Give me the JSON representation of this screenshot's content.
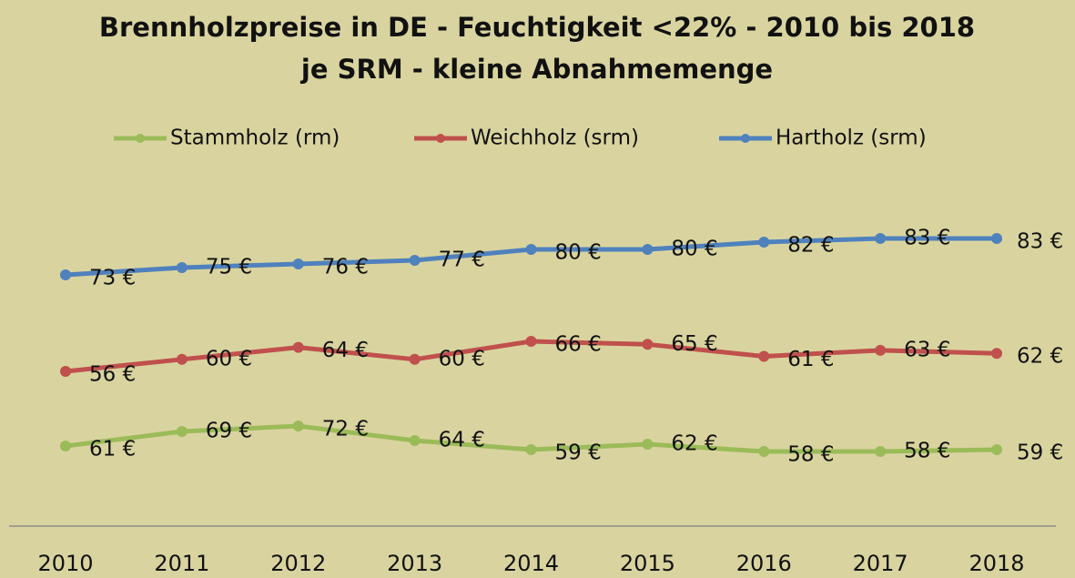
{
  "chart_data": {
    "type": "line",
    "title": "Brennholzpreise in DE - Feuchtigkeit <22% - 2010 bis 2018",
    "subtitle": "je SRM - kleine Abnahmemenge",
    "categories": [
      "2010",
      "2011",
      "2012",
      "2013",
      "2014",
      "2015",
      "2016",
      "2017",
      "2018"
    ],
    "series": [
      {
        "name": "Stammholz (rm)",
        "color": "#9bbb59",
        "values": [
          61,
          69,
          72,
          64,
          59,
          62,
          58,
          58,
          59
        ],
        "value_labels": [
          "61 €",
          "69 €",
          "72 €",
          "64 €",
          "59 €",
          "62 €",
          "58 €",
          "58 €",
          "59 €"
        ]
      },
      {
        "name": "Weichholz (srm)",
        "color": "#c0504d",
        "values": [
          56,
          60,
          64,
          60,
          66,
          65,
          61,
          63,
          62
        ],
        "value_labels": [
          "56 €",
          "60 €",
          "64 €",
          "60 €",
          "66 €",
          "65 €",
          "61 €",
          "63 €",
          "62 €"
        ]
      },
      {
        "name": "Hartholz (srm)",
        "color": "#4f81bd",
        "values": [
          73,
          75,
          76,
          77,
          80,
          80,
          82,
          83,
          83
        ],
        "value_labels": [
          "73 €",
          "75 €",
          "76 €",
          "77 €",
          "80 €",
          "80 €",
          "82 €",
          "83 €",
          "83 €"
        ]
      }
    ],
    "legend": "top"
  }
}
